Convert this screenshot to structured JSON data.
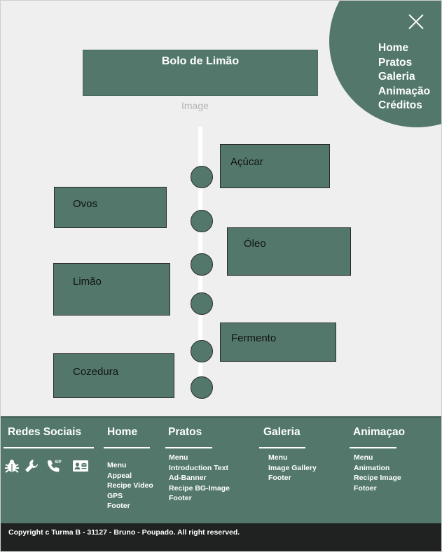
{
  "nav": {
    "items": [
      "Home",
      "Pratos",
      "Galeria",
      "Animação",
      "Créditos"
    ]
  },
  "header": {
    "title": "Bolo de Limão",
    "image_label": "Image"
  },
  "steps": {
    "acucar": "Açúcar",
    "ovos": "Ovos",
    "oleo": "Óleo",
    "limao": "Limão",
    "fermento": "Fermento",
    "cozedura": "Cozedura"
  },
  "footer": {
    "social": {
      "heading": "Redes Sociais",
      "icons": [
        "bug-icon",
        "wrench-icon",
        "sip-phone-icon",
        "contact-card-icon"
      ]
    },
    "home": {
      "heading": "Home",
      "items": [
        "Menu",
        "Appeal",
        "Recipe Video",
        "GPS",
        "Footer"
      ]
    },
    "pratos": {
      "heading": "Pratos",
      "items": [
        "Menu",
        "Introduction Text",
        "Ad-Banner",
        "Recipe BG-Image",
        "Footer"
      ]
    },
    "galeria": {
      "heading": "Galeria",
      "items": [
        "Menu",
        "Image Gallery",
        "Footer"
      ]
    },
    "animacao": {
      "heading": "Animaçao",
      "items": [
        "Menu",
        "Animation",
        "Recipe Image",
        "Fotoer"
      ]
    }
  },
  "copyright": "Copyright c Turma B - 31127 - Bruno - Poupado. All right reserved.",
  "colors": {
    "primary": "#53786b",
    "background": "#efefef",
    "footer_bottom": "#1f2220"
  }
}
